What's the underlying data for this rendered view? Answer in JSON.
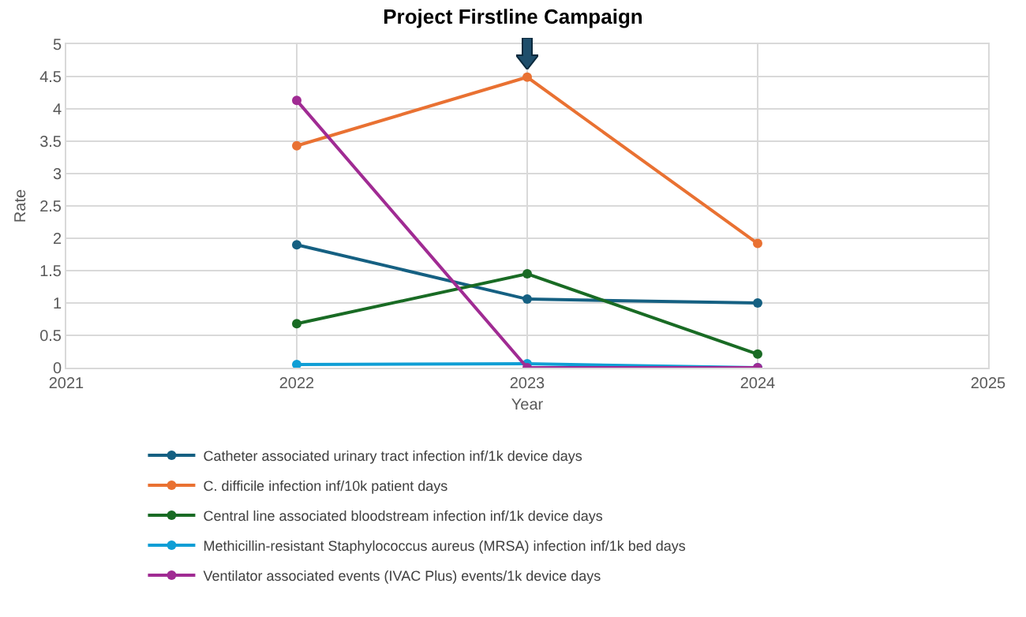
{
  "chart_data": {
    "type": "line",
    "title": "Project Firstline Campaign",
    "xlabel": "Year",
    "ylabel": "Rate",
    "x": [
      2022,
      2023,
      2024
    ],
    "series": [
      {
        "name": "Catheter associated urinary tract infection inf/1k device days",
        "color": "#156082",
        "values": [
          1.9,
          1.06,
          1.0
        ]
      },
      {
        "name": "C. difficile infection inf/10k patient days",
        "color": "#e97132",
        "values": [
          3.43,
          4.49,
          1.92
        ]
      },
      {
        "name": "Central line associated bloodstream infection inf/1k device days",
        "color": "#196b24",
        "values": [
          0.68,
          1.45,
          0.21
        ]
      },
      {
        "name": "Methicillin-resistant Staphylococcus aureus (MRSA) infection inf/1k bed days",
        "color": "#0f9ed5",
        "values": [
          0.05,
          0.06,
          0
        ]
      },
      {
        "name": "Ventilator associated events (IVAC Plus) events/1k device days",
        "color": "#a02b93",
        "values": [
          4.13,
          0,
          0
        ]
      }
    ],
    "xlim": [
      2021,
      2025
    ],
    "xticks": [
      2021,
      2022,
      2023,
      2024,
      2025
    ],
    "ylim": [
      0,
      5
    ],
    "yticks": [
      0,
      0.5,
      1,
      1.5,
      2,
      2.5,
      3,
      3.5,
      4,
      4.5,
      5
    ],
    "grid": true,
    "legend": "bottom",
    "marker": "circle",
    "line_style": "solid"
  }
}
